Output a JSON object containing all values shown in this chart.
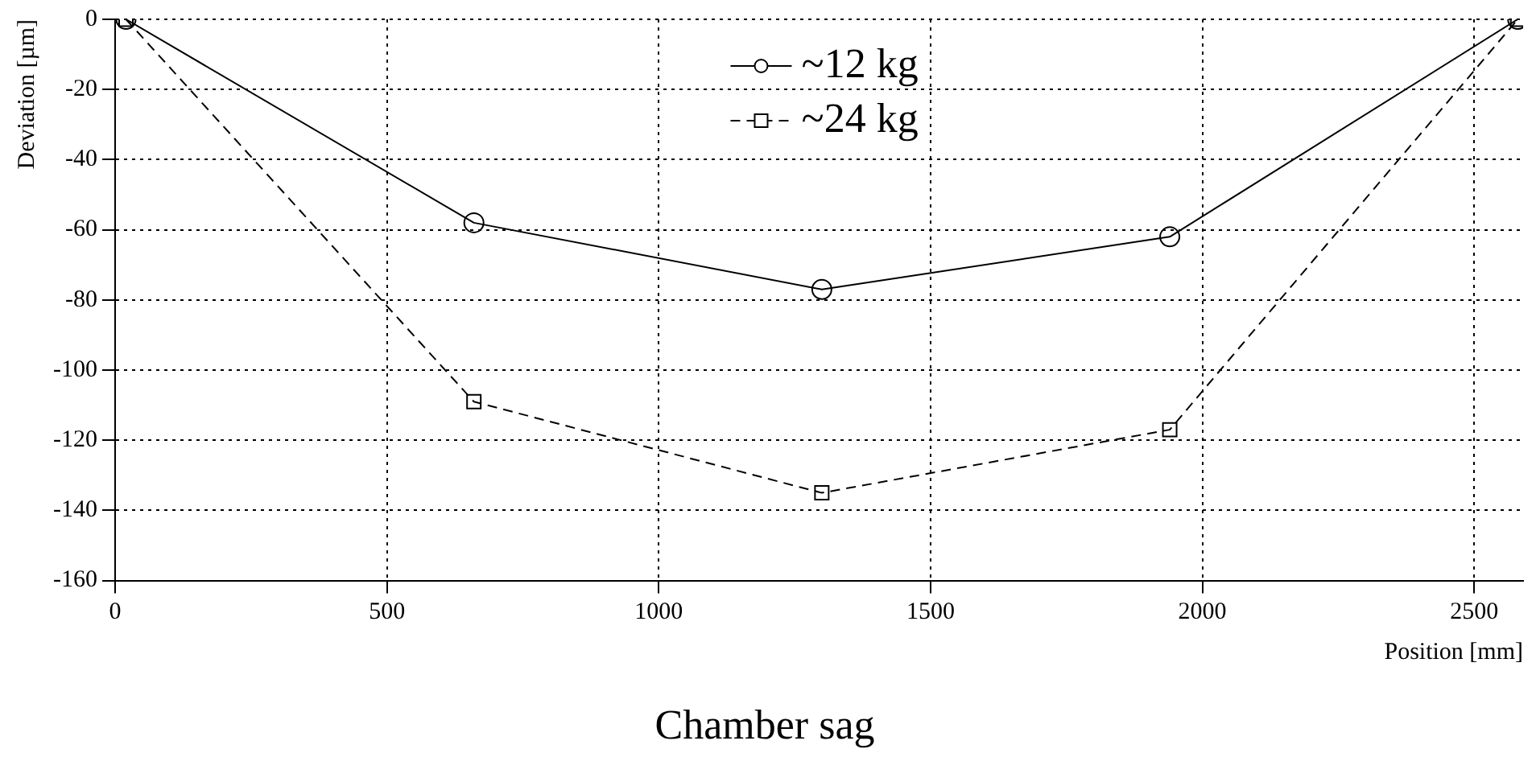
{
  "chart_data": {
    "type": "line",
    "title": "Chamber sag",
    "xlabel": "Position [mm]",
    "ylabel": "Deviation [µm]",
    "x": [
      20,
      660,
      1300,
      1940,
      2580
    ],
    "series": [
      {
        "name": "~12 kg",
        "color": "#000000",
        "values": [
          0,
          -58,
          -77,
          -62,
          0
        ],
        "marker": "circle",
        "line_style": "solid"
      },
      {
        "name": "~24 kg",
        "color": "#000000",
        "values": [
          0,
          -109,
          -135,
          -117,
          0
        ],
        "marker": "square",
        "line_style": "dashed"
      }
    ],
    "xlim": [
      0,
      2590
    ],
    "xticks": [
      0,
      500,
      1000,
      1500,
      2000,
      2500
    ],
    "ylim": [
      -160,
      0
    ],
    "yticks": [
      -160,
      -140,
      -120,
      -100,
      -80,
      -60,
      -40,
      -20,
      0
    ],
    "grid": true,
    "legend": "top"
  }
}
